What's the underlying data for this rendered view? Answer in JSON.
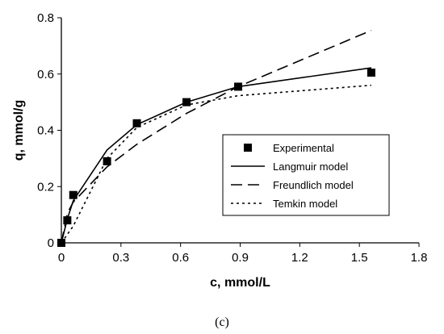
{
  "chart_data": {
    "type": "scatter",
    "xlabel": "c, mmol/L",
    "ylabel": "q, mmol/g",
    "xlim": [
      0,
      1.8
    ],
    "ylim": [
      0,
      0.8
    ],
    "x_ticks": [
      "0",
      "0.3",
      "0.6",
      "0.9",
      "1.2",
      "1.5",
      "1.8"
    ],
    "y_ticks": [
      "0",
      "0.2",
      "0.4",
      "0.6",
      "0.8"
    ],
    "grid": false,
    "legend_position": "center-right",
    "series": [
      {
        "name": "Experimental",
        "style": "square-markers",
        "color": "#000000",
        "x": [
          0.0,
          0.03,
          0.06,
          0.23,
          0.38,
          0.63,
          0.89,
          1.56
        ],
        "y": [
          0.0,
          0.08,
          0.17,
          0.29,
          0.425,
          0.5,
          0.555,
          0.605
        ]
      },
      {
        "name": "Langmuir model",
        "style": "solid",
        "color": "#000000",
        "x": [
          0.0,
          0.03,
          0.06,
          0.23,
          0.38,
          0.63,
          0.89,
          1.56
        ],
        "y": [
          0.0,
          0.085,
          0.15,
          0.33,
          0.42,
          0.5,
          0.555,
          0.622
        ]
      },
      {
        "name": "Freundlich model",
        "style": "long-dash",
        "color": "#000000",
        "x": [
          0.0,
          0.03,
          0.06,
          0.23,
          0.38,
          0.63,
          0.89,
          1.56
        ],
        "y": [
          0.0,
          0.105,
          0.145,
          0.27,
          0.35,
          0.46,
          0.555,
          0.755
        ]
      },
      {
        "name": "Temkin model",
        "style": "dotted",
        "color": "#000000",
        "x": [
          0.0,
          0.03,
          0.06,
          0.23,
          0.38,
          0.63,
          0.89,
          1.56
        ],
        "y": [
          0.0,
          0.03,
          0.06,
          0.3,
          0.41,
          0.49,
          0.523,
          0.56
        ]
      }
    ]
  },
  "caption": "(c)"
}
